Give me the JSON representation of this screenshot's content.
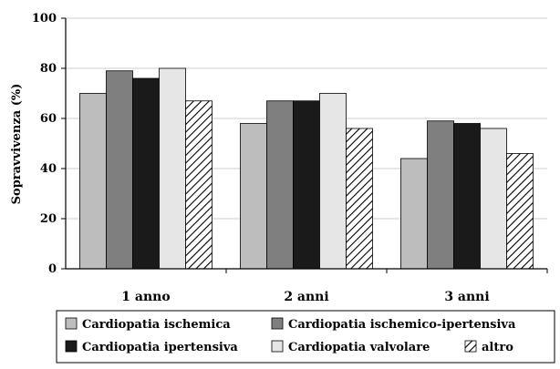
{
  "chart_data": {
    "type": "bar",
    "ylabel": "Sopravvivenza (%)",
    "ylim": [
      0,
      100
    ],
    "yticks": [
      "0",
      "20",
      "40",
      "60",
      "80",
      "100"
    ],
    "grid": true,
    "legend_position": "bottom",
    "categories": [
      "1 anno",
      "2 anni",
      "3 anni"
    ],
    "series": [
      {
        "name": "Cardiopatia ischemica",
        "values": [
          70,
          58,
          44
        ],
        "color": "#bdbdbd",
        "pattern": "solid"
      },
      {
        "name": "Cardiopatia ischemico-ipertensiva",
        "values": [
          79,
          67,
          59
        ],
        "color": "#7f7f7f",
        "pattern": "solid"
      },
      {
        "name": "Cardiopatia ipertensiva",
        "values": [
          76,
          67,
          58
        ],
        "color": "#1a1a1a",
        "pattern": "solid"
      },
      {
        "name": "Cardiopatia valvolare",
        "values": [
          80,
          70,
          56
        ],
        "color": "#e6e6e6",
        "pattern": "solid"
      },
      {
        "name": "altro",
        "values": [
          67,
          56,
          46
        ],
        "color": "#ffffff",
        "pattern": "hatch"
      }
    ]
  }
}
